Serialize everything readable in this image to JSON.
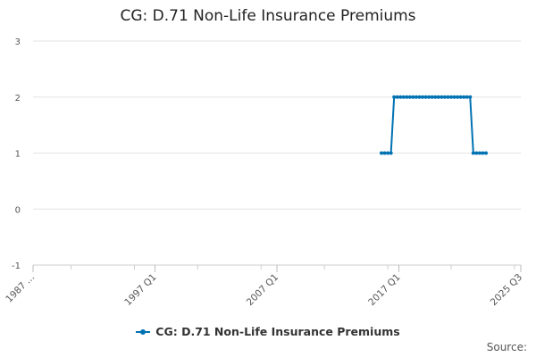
{
  "chart_data": {
    "type": "line",
    "title": "CG: D.71 Non-Life Insurance Premiums",
    "x_tick_labels": [
      "1987 ...",
      "1997 Q1",
      "2007 Q1",
      "2017 Q1",
      "2025 Q3"
    ],
    "x_range": [
      1987.0,
      2025.5
    ],
    "ylim": [
      -1,
      3
    ],
    "y_ticks": [
      -1,
      0,
      1,
      2,
      3
    ],
    "grid": true,
    "legend_position": "bottom",
    "series": [
      {
        "name": "CG: D.71 Non-Life Insurance Premiums",
        "color": "#0072b2",
        "points": [
          {
            "x": 2014.5,
            "y": 1
          },
          {
            "x": 2014.75,
            "y": 1
          },
          {
            "x": 2015.0,
            "y": 1
          },
          {
            "x": 2015.25,
            "y": 1
          },
          {
            "x": 2015.5,
            "y": 2
          },
          {
            "x": 2015.75,
            "y": 2
          },
          {
            "x": 2016.0,
            "y": 2
          },
          {
            "x": 2016.25,
            "y": 2
          },
          {
            "x": 2016.5,
            "y": 2
          },
          {
            "x": 2016.75,
            "y": 2
          },
          {
            "x": 2017.0,
            "y": 2
          },
          {
            "x": 2017.25,
            "y": 2
          },
          {
            "x": 2017.5,
            "y": 2
          },
          {
            "x": 2017.75,
            "y": 2
          },
          {
            "x": 2018.0,
            "y": 2
          },
          {
            "x": 2018.25,
            "y": 2
          },
          {
            "x": 2018.5,
            "y": 2
          },
          {
            "x": 2018.75,
            "y": 2
          },
          {
            "x": 2019.0,
            "y": 2
          },
          {
            "x": 2019.25,
            "y": 2
          },
          {
            "x": 2019.5,
            "y": 2
          },
          {
            "x": 2019.75,
            "y": 2
          },
          {
            "x": 2020.0,
            "y": 2
          },
          {
            "x": 2020.25,
            "y": 2
          },
          {
            "x": 2020.5,
            "y": 2
          },
          {
            "x": 2020.75,
            "y": 2
          },
          {
            "x": 2021.0,
            "y": 2
          },
          {
            "x": 2021.25,
            "y": 2
          },
          {
            "x": 2021.5,
            "y": 2
          },
          {
            "x": 2021.75,
            "y": 1
          },
          {
            "x": 2022.0,
            "y": 1
          },
          {
            "x": 2022.25,
            "y": 1
          },
          {
            "x": 2022.5,
            "y": 1
          },
          {
            "x": 2022.75,
            "y": 1
          }
        ]
      }
    ]
  },
  "legend": {
    "label": "CG: D.71 Non-Life Insurance Premiums"
  },
  "source_label": "Source:"
}
